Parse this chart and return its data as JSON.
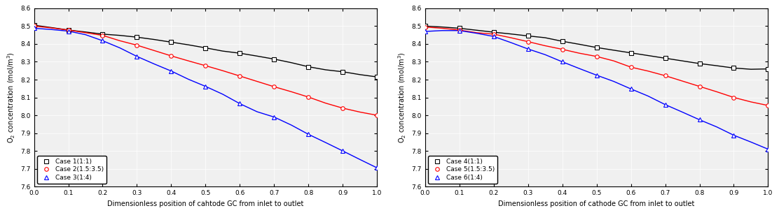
{
  "left": {
    "xlabel": "Dimensionless position of cahtode GC from inlet to outlet",
    "ylabel": "O$_2$ concentration (mol/m$^3$)",
    "ylim": [
      7.6,
      8.6
    ],
    "xlim": [
      0.0,
      1.0
    ],
    "yticks": [
      7.6,
      7.7,
      7.8,
      7.9,
      8.0,
      8.1,
      8.2,
      8.3,
      8.4,
      8.5,
      8.6
    ],
    "xticks": [
      0.0,
      0.1,
      0.2,
      0.3,
      0.4,
      0.5,
      0.6,
      0.7,
      0.8,
      0.9,
      1.0
    ],
    "cases": [
      {
        "label": "Case 1(1:1)",
        "color": "black",
        "marker": "s",
        "x": [
          0.0,
          0.05,
          0.1,
          0.15,
          0.2,
          0.25,
          0.3,
          0.35,
          0.4,
          0.45,
          0.5,
          0.55,
          0.6,
          0.65,
          0.7,
          0.75,
          0.8,
          0.85,
          0.9,
          0.95,
          1.0
        ],
        "y": [
          8.505,
          8.492,
          8.478,
          8.467,
          8.455,
          8.448,
          8.438,
          8.425,
          8.41,
          8.395,
          8.378,
          8.36,
          8.348,
          8.332,
          8.315,
          8.295,
          8.272,
          8.255,
          8.244,
          8.228,
          8.215
        ]
      },
      {
        "label": "Case 2(1.5:3.5)",
        "color": "red",
        "marker": "o",
        "x": [
          0.0,
          0.05,
          0.1,
          0.15,
          0.2,
          0.25,
          0.3,
          0.35,
          0.4,
          0.45,
          0.5,
          0.55,
          0.6,
          0.65,
          0.7,
          0.75,
          0.8,
          0.85,
          0.9,
          0.95,
          1.0
        ],
        "y": [
          8.5,
          8.49,
          8.478,
          8.463,
          8.448,
          8.418,
          8.393,
          8.363,
          8.333,
          8.305,
          8.278,
          8.25,
          8.22,
          8.19,
          8.16,
          8.132,
          8.102,
          8.068,
          8.04,
          8.018,
          8.0
        ]
      },
      {
        "label": "Case 3(1:4)",
        "color": "blue",
        "marker": "^",
        "x": [
          0.0,
          0.05,
          0.1,
          0.15,
          0.2,
          0.25,
          0.3,
          0.35,
          0.4,
          0.45,
          0.5,
          0.55,
          0.6,
          0.65,
          0.7,
          0.75,
          0.8,
          0.85,
          0.9,
          0.95,
          1.0
        ],
        "y": [
          8.488,
          8.481,
          8.472,
          8.452,
          8.418,
          8.378,
          8.33,
          8.288,
          8.248,
          8.202,
          8.162,
          8.118,
          8.065,
          8.02,
          7.99,
          7.945,
          7.893,
          7.847,
          7.8,
          7.752,
          7.705
        ]
      }
    ]
  },
  "right": {
    "xlabel": "Dimensionless position of cathode GC from inlet to outlet",
    "ylabel": "O$_2$ concentration (mol/m$^3$)",
    "ylim": [
      7.6,
      8.6
    ],
    "xlim": [
      0.0,
      1.0
    ],
    "yticks": [
      7.6,
      7.7,
      7.8,
      7.9,
      8.0,
      8.1,
      8.2,
      8.3,
      8.4,
      8.5,
      8.6
    ],
    "xticks": [
      0.0,
      0.1,
      0.2,
      0.3,
      0.4,
      0.5,
      0.6,
      0.7,
      0.8,
      0.9,
      1.0
    ],
    "cases": [
      {
        "label": "Case 4(1:1)",
        "color": "black",
        "marker": "s",
        "x": [
          0.0,
          0.05,
          0.1,
          0.15,
          0.2,
          0.25,
          0.3,
          0.35,
          0.4,
          0.45,
          0.5,
          0.55,
          0.6,
          0.65,
          0.7,
          0.75,
          0.8,
          0.85,
          0.9,
          0.95,
          1.0
        ],
        "y": [
          8.5,
          8.495,
          8.488,
          8.477,
          8.466,
          8.456,
          8.445,
          8.435,
          8.415,
          8.398,
          8.38,
          8.365,
          8.35,
          8.335,
          8.32,
          8.305,
          8.29,
          8.278,
          8.265,
          8.258,
          8.26
        ]
      },
      {
        "label": "Case 5(1.5:3.5)",
        "color": "red",
        "marker": "o",
        "x": [
          0.0,
          0.05,
          0.1,
          0.15,
          0.2,
          0.25,
          0.3,
          0.35,
          0.4,
          0.45,
          0.5,
          0.55,
          0.6,
          0.65,
          0.7,
          0.75,
          0.8,
          0.85,
          0.9,
          0.95,
          1.0
        ],
        "y": [
          8.495,
          8.488,
          8.478,
          8.463,
          8.455,
          8.435,
          8.413,
          8.39,
          8.37,
          8.348,
          8.33,
          8.305,
          8.27,
          8.248,
          8.222,
          8.192,
          8.162,
          8.132,
          8.1,
          8.075,
          8.055
        ]
      },
      {
        "label": "Case 6(1:4)",
        "color": "blue",
        "marker": "^",
        "x": [
          0.0,
          0.05,
          0.1,
          0.15,
          0.2,
          0.25,
          0.3,
          0.35,
          0.4,
          0.45,
          0.5,
          0.55,
          0.6,
          0.65,
          0.7,
          0.75,
          0.8,
          0.85,
          0.9,
          0.95,
          1.0
        ],
        "y": [
          8.47,
          8.475,
          8.475,
          8.46,
          8.442,
          8.408,
          8.372,
          8.34,
          8.3,
          8.262,
          8.225,
          8.19,
          8.148,
          8.108,
          8.06,
          8.018,
          7.975,
          7.935,
          7.888,
          7.85,
          7.81
        ]
      }
    ]
  },
  "marker_size": 4,
  "marker_every": 2,
  "line_width": 1.0,
  "font_size": 7,
  "tick_font_size": 6.5,
  "legend_font_size": 6.5,
  "bg_color": "#f0f0f0"
}
